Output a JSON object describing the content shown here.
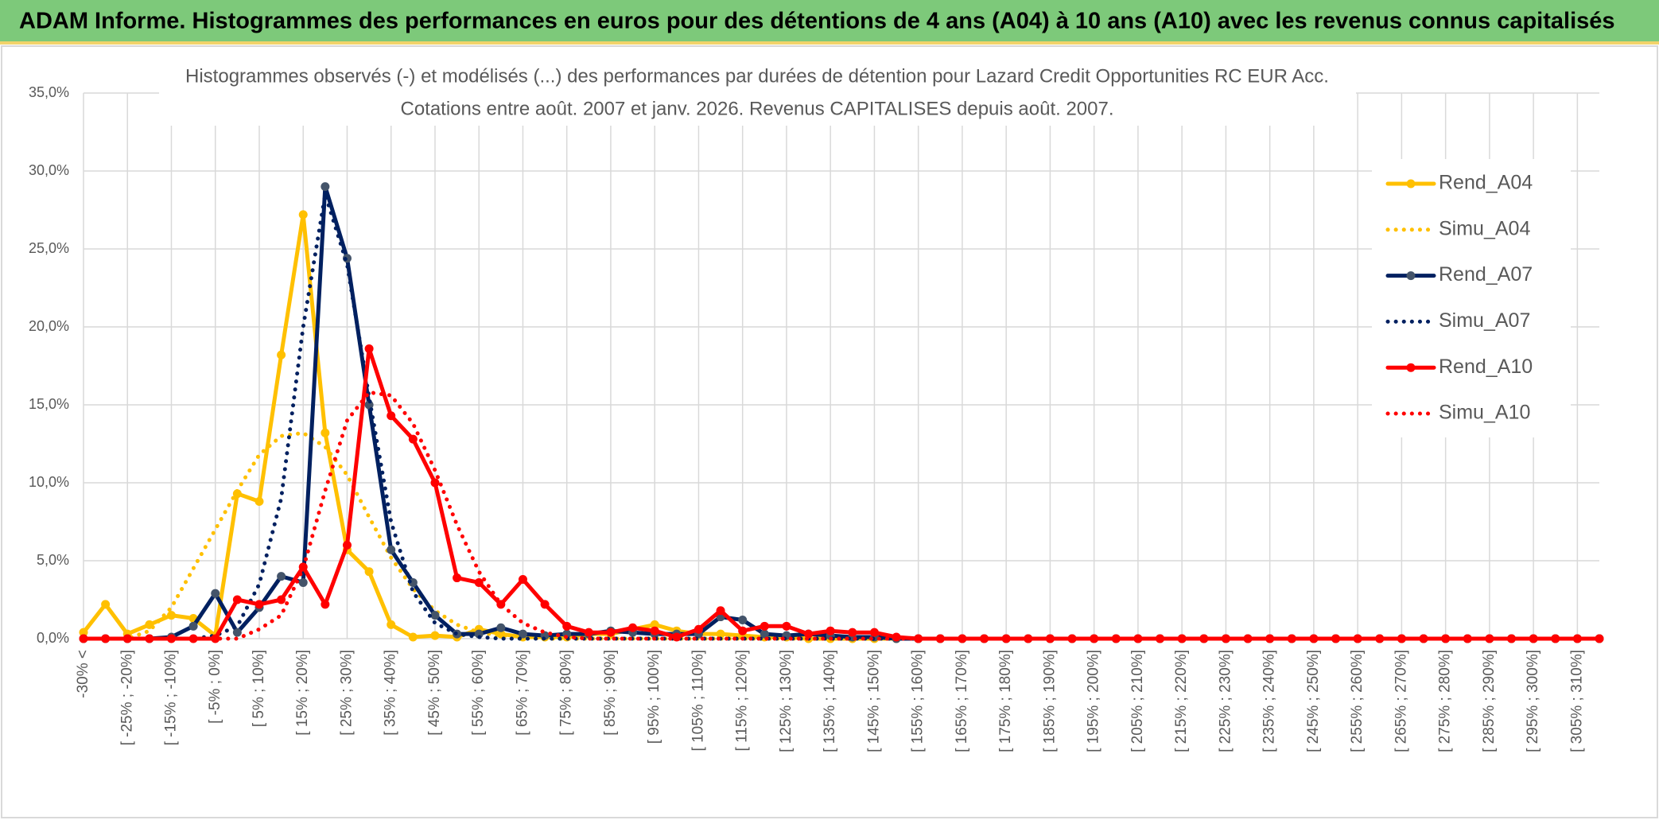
{
  "header": {
    "title": "ADAM Informe. Histogrammes des performances en euros pour des détentions de 4 ans (A04) à 10 ans (A10) avec les revenus connus capitalisés"
  },
  "chart_data": {
    "type": "line",
    "title": "Histogrammes observés (-) et modélisés (...) des performances par durées de détention pour Lazard Credit Opportunities RC EUR Acc.",
    "subtitle": "Cotations entre août. 2007 et janv. 2026. Revenus CAPITALISES depuis août. 2007.",
    "categories": [
      "-30% <",
      null,
      "[ -25% ; -20%]",
      null,
      "[ -15% ; -10%]",
      null,
      "[ -5% ; 0%]",
      null,
      "[ 5% ; 10%]",
      null,
      "[ 15% ; 20%]",
      null,
      "[ 25% ; 30%]",
      null,
      "[ 35% ; 40%]",
      null,
      "[ 45% ; 50%]",
      null,
      "[ 55% ; 60%]",
      null,
      "[ 65% ; 70%]",
      null,
      "[ 75% ; 80%]",
      null,
      "[ 85% ; 90%]",
      null,
      "[ 95% ; 100%]",
      null,
      "[ 105% ; 110%]",
      null,
      "[ 115% ; 120%]",
      null,
      "[ 125% ; 130%]",
      null,
      "[ 135% ; 140%]",
      null,
      "[ 145% ; 150%]",
      null,
      "[ 155% ; 160%]",
      null,
      "[ 165% ; 170%]",
      null,
      "[ 175% ; 180%]",
      null,
      "[ 185% ; 190%]",
      null,
      "[ 195% ; 200%]",
      null,
      "[ 205% ; 210%]",
      null,
      "[ 215% ; 220%]",
      null,
      "[ 225% ; 230%]",
      null,
      "[ 235% ; 240%]",
      null,
      "[ 245% ; 250%]",
      null,
      "[ 255% ; 260%]",
      null,
      "[ 265% ; 270%]",
      null,
      "[ 275% ; 280%]",
      null,
      "[ 285% ; 290%]",
      null,
      "[ 295% ; 300%]",
      null,
      "[ 305% ; 310%]",
      null
    ],
    "series": [
      {
        "name": "Rend_A04",
        "color": "#ffc000",
        "line_style": "solid",
        "markers": true,
        "values": [
          0.4,
          2.2,
          0.3,
          0.9,
          1.5,
          1.3,
          0.2,
          9.3,
          8.8,
          18.2,
          27.2,
          13.2,
          5.7,
          4.3,
          0.9,
          0.1,
          0.2,
          0.1,
          0.6,
          0.3,
          0.1,
          0.1,
          0.1,
          0.3,
          0.3,
          0.6,
          0.9,
          0.5,
          0.3,
          0.3,
          0.2,
          0.1,
          0.1,
          0,
          0,
          0,
          0,
          0,
          0,
          0,
          0,
          0,
          0,
          0,
          0,
          0,
          0,
          0,
          0,
          0,
          0,
          0,
          0,
          0,
          0,
          0,
          0,
          0,
          0,
          0,
          0,
          0,
          0,
          0,
          0,
          0,
          0,
          0,
          0,
          0
        ]
      },
      {
        "name": "Simu_A04",
        "color": "#ffc000",
        "line_style": "dotted",
        "markers": false,
        "values": [
          0,
          0,
          0,
          0.5,
          2.0,
          4.5,
          7.0,
          9.5,
          11.8,
          13.0,
          13.2,
          12.3,
          10.5,
          7.8,
          5.2,
          3.2,
          1.8,
          0.9,
          0.4,
          0.2,
          0.1,
          0,
          0,
          0,
          0,
          0,
          0,
          0,
          0,
          0,
          0,
          0,
          0,
          0,
          0,
          0,
          0,
          0,
          0,
          0,
          0,
          0,
          0,
          0,
          0,
          0,
          0,
          0,
          0,
          0,
          0,
          0,
          0,
          0,
          0,
          0,
          0,
          0,
          0,
          0,
          0,
          0,
          0,
          0,
          0,
          0,
          0,
          0,
          0,
          0
        ]
      },
      {
        "name": "Rend_A07",
        "color": "#002060",
        "marker_color": "#44546a",
        "line_style": "solid",
        "markers": true,
        "values": [
          0,
          0,
          0,
          0,
          0.1,
          0.8,
          2.9,
          0.4,
          2.0,
          4.0,
          3.6,
          29.0,
          24.4,
          15.0,
          5.7,
          3.6,
          1.5,
          0.3,
          0.3,
          0.7,
          0.3,
          0.2,
          0.3,
          0.3,
          0.5,
          0.4,
          0.3,
          0.3,
          0.3,
          1.4,
          1.2,
          0.3,
          0.2,
          0.3,
          0.2,
          0.1,
          0.1,
          0,
          0,
          0,
          0,
          0,
          0,
          0,
          0,
          0,
          0,
          0,
          0,
          0,
          0,
          0,
          0,
          0,
          0,
          0,
          0,
          0,
          0,
          0,
          0,
          0,
          0,
          0,
          0,
          0,
          0,
          0,
          0,
          0
        ]
      },
      {
        "name": "Simu_A07",
        "color": "#002060",
        "line_style": "dotted",
        "markers": false,
        "values": [
          0,
          0,
          0,
          0,
          0,
          0,
          0.2,
          0.8,
          3.5,
          9.0,
          20.0,
          28.5,
          24.0,
          15.5,
          7.5,
          3.0,
          1.0,
          0.3,
          0.1,
          0,
          0,
          0,
          0,
          0,
          0,
          0,
          0,
          0,
          0,
          0,
          0,
          0,
          0,
          0,
          0,
          0,
          0,
          0,
          0,
          0,
          0,
          0,
          0,
          0,
          0,
          0,
          0,
          0,
          0,
          0,
          0,
          0,
          0,
          0,
          0,
          0,
          0,
          0,
          0,
          0,
          0,
          0,
          0,
          0,
          0,
          0,
          0,
          0,
          0,
          0
        ]
      },
      {
        "name": "Rend_A10",
        "color": "#ff0000",
        "line_style": "solid",
        "markers": true,
        "values": [
          0,
          0,
          0,
          0,
          0,
          0,
          0,
          2.5,
          2.2,
          2.5,
          4.6,
          2.2,
          6.0,
          18.6,
          14.3,
          12.8,
          10.0,
          3.9,
          3.6,
          2.2,
          3.8,
          2.2,
          0.8,
          0.4,
          0.4,
          0.7,
          0.5,
          0.1,
          0.6,
          1.8,
          0.5,
          0.8,
          0.8,
          0.3,
          0.5,
          0.4,
          0.4,
          0.1,
          0,
          0,
          0,
          0,
          0,
          0,
          0,
          0,
          0,
          0,
          0,
          0,
          0,
          0,
          0,
          0,
          0,
          0,
          0,
          0,
          0,
          0,
          0,
          0,
          0,
          0,
          0,
          0,
          0,
          0,
          0,
          0
        ]
      },
      {
        "name": "Simu_A10",
        "color": "#ff0000",
        "line_style": "dotted",
        "markers": false,
        "values": [
          0,
          0,
          0,
          0,
          0,
          0,
          0,
          0,
          0.6,
          1.5,
          4.5,
          9.5,
          14.0,
          15.8,
          15.6,
          13.8,
          10.8,
          7.3,
          4.3,
          2.2,
          1.0,
          0.4,
          0.1,
          0,
          0,
          0,
          0,
          0,
          0,
          0,
          0,
          0,
          0,
          0,
          0,
          0,
          0,
          0,
          0,
          0,
          0,
          0,
          0,
          0,
          0,
          0,
          0,
          0,
          0,
          0,
          0,
          0,
          0,
          0,
          0,
          0,
          0,
          0,
          0,
          0,
          0,
          0,
          0,
          0,
          0,
          0,
          0,
          0,
          0,
          0
        ]
      }
    ],
    "ylim": [
      0,
      35
    ],
    "yticks": [
      {
        "value": 0,
        "label": "0,0%"
      },
      {
        "value": 5,
        "label": "5,0%"
      },
      {
        "value": 10,
        "label": "10,0%"
      },
      {
        "value": 15,
        "label": "15,0%"
      },
      {
        "value": 20,
        "label": "20,0%"
      },
      {
        "value": 25,
        "label": "25,0%"
      },
      {
        "value": 30,
        "label": "30,0%"
      },
      {
        "value": 35,
        "label": "35,0%"
      }
    ],
    "grid": true,
    "legend": "right"
  }
}
